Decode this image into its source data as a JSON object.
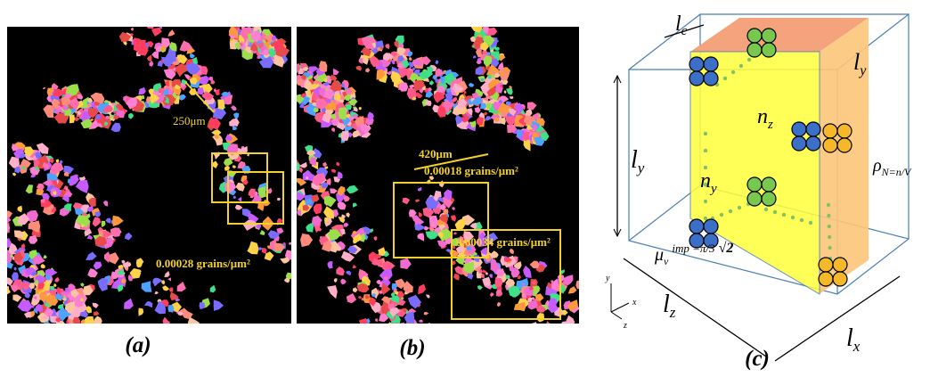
{
  "panels": [
    {
      "label": "(a)",
      "scale_bar": "250μm",
      "density_labels": [
        "0.00028 grains/μm²"
      ]
    },
    {
      "label": "(b)",
      "scale_bar": "420μm",
      "density_labels": [
        "0.00018 grains/μm²",
        "0.00034 grains/μm²"
      ]
    }
  ],
  "diagram": {
    "label": "(c)",
    "lc": {
      "sym": "l",
      "sub": "c"
    },
    "ly_top": {
      "sym": "l",
      "sub": "y"
    },
    "nz": {
      "sym": "n",
      "sub": "z"
    },
    "ny": {
      "sym": "n",
      "sub": "y"
    },
    "ly_left": {
      "sym": "l",
      "sub": "y"
    },
    "rho": {
      "sym": "ρ",
      "sub": "N=n/V"
    },
    "mu": {
      "sym": "μ",
      "sub": "v",
      "sup": "imp =π/3",
      "tail": "√2"
    },
    "lz": {
      "sym": "l",
      "sub": "z"
    },
    "lx": {
      "sym": "l",
      "sub": "x"
    },
    "axes": {
      "y": "y",
      "x": "x",
      "z": "z"
    }
  }
}
